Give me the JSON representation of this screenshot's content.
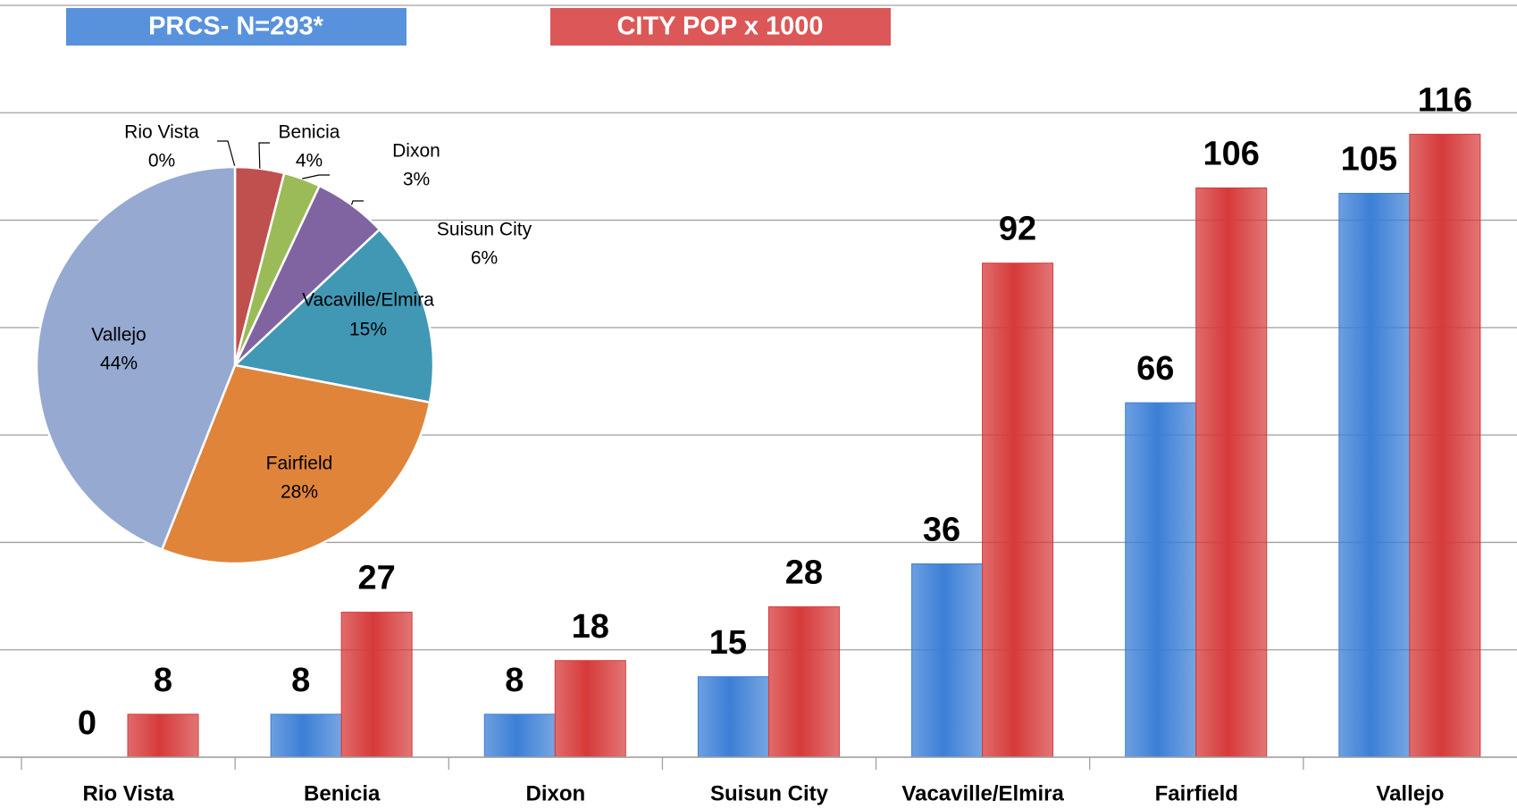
{
  "chart_data": [
    {
      "type": "bar",
      "categories": [
        "Rio Vista",
        "Benicia",
        "Dixon",
        "Suisun City",
        "Vacaville/Elmira",
        "Fairfield",
        "Vallejo"
      ],
      "series": [
        {
          "name": "PRCS- N=293*",
          "color": "#3c7fd6",
          "values": [
            0,
            8,
            8,
            15,
            36,
            66,
            105
          ]
        },
        {
          "name": "CITY POP x 1000",
          "color": "#d63a3a",
          "values": [
            8,
            27,
            18,
            28,
            92,
            106,
            116
          ]
        }
      ],
      "ylim": [
        0,
        140
      ],
      "yticks": [
        0,
        20,
        40,
        60,
        80,
        100,
        120,
        140
      ],
      "grid": true
    },
    {
      "type": "pie",
      "categories": [
        "Rio Vista",
        "Benicia",
        "Dixon",
        "Suisun City",
        "Vacaville/Elmira",
        "Fairfield",
        "Vallejo"
      ],
      "values": [
        0,
        4,
        3,
        6,
        15,
        28,
        44
      ],
      "value_labels": [
        "0%",
        "4%",
        "3%",
        "6%",
        "15%",
        "28%",
        "44%"
      ],
      "colors": [
        "#4f81bd",
        "#c0504d",
        "#9bbb59",
        "#8064a2",
        "#4198b5",
        "#e0843a",
        "#95a9d1"
      ]
    }
  ]
}
